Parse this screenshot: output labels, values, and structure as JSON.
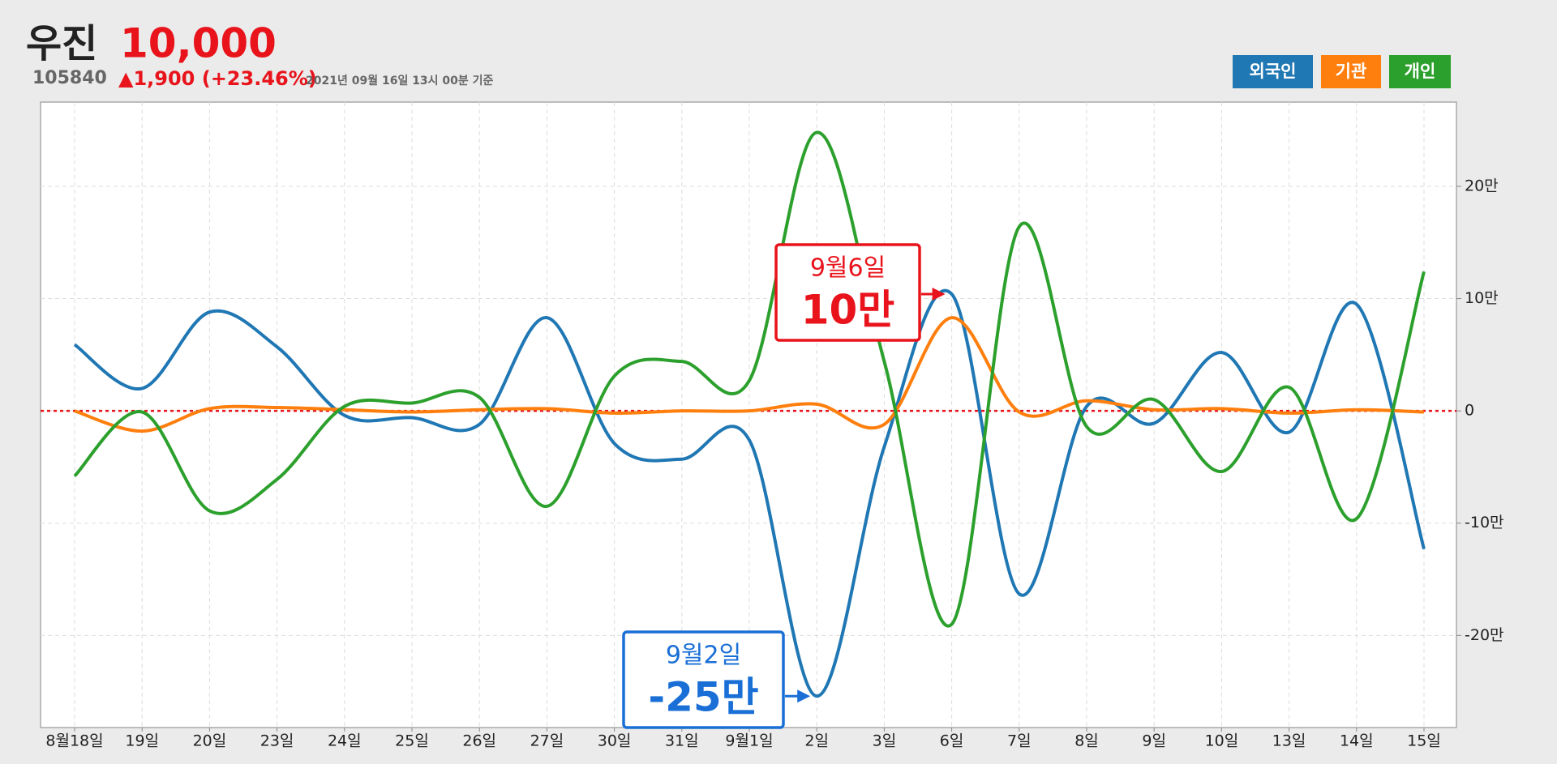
{
  "chart_data": {
    "type": "line",
    "title": "우진",
    "price": "10,000",
    "code": "105840",
    "change": "▲1,900 (+23.46%)",
    "timestamp": "2021년 09월 16일 13시 00분 기준",
    "categories": [
      "8월18일",
      "19일",
      "20일",
      "23일",
      "24일",
      "25일",
      "26일",
      "27일",
      "30일",
      "31일",
      "9월1일",
      "2일",
      "3일",
      "6일",
      "7일",
      "8일",
      "9일",
      "10일",
      "13일",
      "14일",
      "15일"
    ],
    "series": [
      {
        "name": "외국인",
        "color": "#1f77b4",
        "values": [
          59000,
          20000,
          88000,
          57000,
          -4000,
          -6000,
          -12000,
          83000,
          -29000,
          -43000,
          -26000,
          -254000,
          -32000,
          104000,
          -163000,
          4000,
          -11000,
          52000,
          -19000,
          95000,
          -123000
        ]
      },
      {
        "name": "기관",
        "color": "#ff7f0e",
        "values": [
          0,
          -18000,
          2000,
          3000,
          1000,
          -1000,
          1000,
          2000,
          -2000,
          0,
          0,
          6000,
          -12000,
          83000,
          -1000,
          9000,
          1000,
          2000,
          -2000,
          1000,
          -1000
        ]
      },
      {
        "name": "개인",
        "color": "#2ca02c",
        "values": [
          -58000,
          -1000,
          -89000,
          -61000,
          4000,
          7000,
          12000,
          -85000,
          31000,
          44000,
          27000,
          248000,
          44000,
          -190000,
          164000,
          -14000,
          10000,
          -54000,
          21000,
          -96000,
          124000
        ]
      }
    ],
    "ylim": [
      -282000,
      275000
    ],
    "yticks": [
      {
        "value": -200000,
        "label": "-20만"
      },
      {
        "value": -100000,
        "label": "-10만"
      },
      0,
      {
        "value": 100000,
        "label": "10만"
      },
      {
        "value": 200000,
        "label": "20만"
      }
    ],
    "grid": true,
    "zero_line": true,
    "zero_line_color": "#e8131b",
    "annotations": [
      {
        "title": "9월6일",
        "text": "10만",
        "color": "#e8131b"
      },
      {
        "title": "9월2일",
        "text": "-25만",
        "color": "#1a6fd6"
      }
    ]
  }
}
